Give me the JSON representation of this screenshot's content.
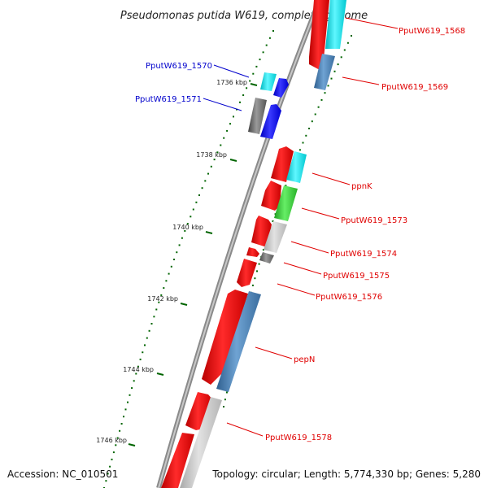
{
  "title": "Pseudomonas putida W619, complete genome",
  "footer": {
    "accession": "Accession: NC_010501",
    "topology": "Topology: circular; Length: 5,774,330 bp; Genes: 5,280"
  },
  "colors": {
    "red": "#ff0000",
    "cyan": "#00e5ee",
    "steel": "#4682b4",
    "green": "#33cc33",
    "lightgray": "#c0c0c0",
    "darkgray": "#666666",
    "blue": "#0000ff",
    "tick": "#006400",
    "label_red": "#e00000",
    "label_blue": "#0000cc"
  },
  "kbp_ticks": [
    {
      "label": "1736 kbp"
    },
    {
      "label": "1738 kbp"
    },
    {
      "label": "1740 kbp"
    },
    {
      "label": "1742 kbp"
    },
    {
      "label": "1744 kbp"
    },
    {
      "label": "1746 kbp"
    }
  ],
  "gene_labels": [
    {
      "text": "PputW619_1568",
      "color": "red"
    },
    {
      "text": "PputW619_1569",
      "color": "red"
    },
    {
      "text": "PputW619_1570",
      "color": "blue"
    },
    {
      "text": "PputW619_1571",
      "color": "blue"
    },
    {
      "text": "ppnK",
      "color": "red"
    },
    {
      "text": "PputW619_1573",
      "color": "red"
    },
    {
      "text": "PputW619_1574",
      "color": "red"
    },
    {
      "text": "PputW619_1575",
      "color": "red"
    },
    {
      "text": "PputW619_1576",
      "color": "red"
    },
    {
      "text": "pepN",
      "color": "red"
    },
    {
      "text": "PputW619_1578",
      "color": "red"
    }
  ]
}
